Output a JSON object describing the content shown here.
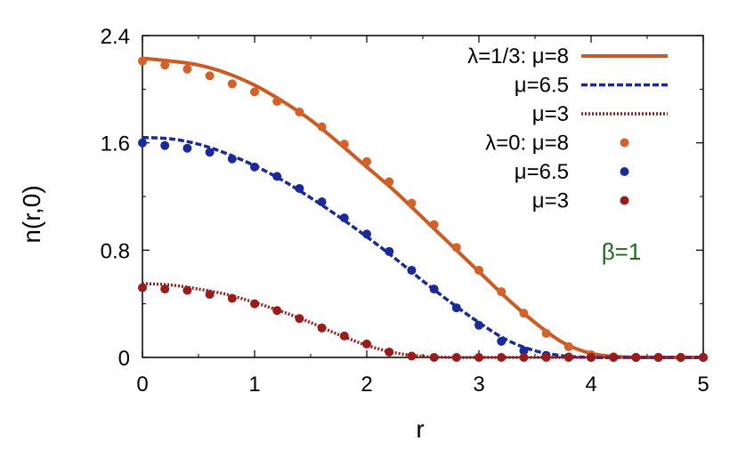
{
  "chart_data": {
    "type": "line",
    "title": "",
    "xlabel": "r",
    "ylabel": "n(r,0)",
    "xlim": [
      0,
      5
    ],
    "ylim": [
      0,
      2.4
    ],
    "xticks": [
      "0",
      "1",
      "2",
      "3",
      "4",
      "5"
    ],
    "yticks": [
      "0",
      "0.8",
      "1.6",
      "2.4"
    ],
    "grid": false,
    "legend_position": "top-right",
    "annotation": {
      "text": "β=1",
      "color": "#1a6e1a"
    },
    "series": [
      {
        "name": "λ=1/3: μ=8",
        "style": "solid",
        "color": "#cc5a22",
        "x": [
          0,
          0.25,
          0.5,
          0.75,
          1.0,
          1.25,
          1.5,
          1.75,
          2.0,
          2.25,
          2.5,
          2.75,
          3.0,
          3.25,
          3.5,
          3.75,
          4.0,
          4.25,
          4.5,
          4.75,
          5.0
        ],
        "values": [
          2.23,
          2.21,
          2.18,
          2.12,
          2.03,
          1.91,
          1.77,
          1.6,
          1.42,
          1.24,
          1.04,
          0.84,
          0.64,
          0.44,
          0.26,
          0.11,
          0.03,
          0.005,
          0.0,
          0.0,
          0.0
        ]
      },
      {
        "name": "μ=6.5",
        "style": "dashed",
        "color": "#1a2a9c",
        "x": [
          0,
          0.25,
          0.5,
          0.75,
          1.0,
          1.25,
          1.5,
          1.75,
          2.0,
          2.25,
          2.5,
          2.75,
          3.0,
          3.25,
          3.5,
          3.75,
          4.0,
          4.25,
          4.5,
          4.75,
          5.0
        ],
        "values": [
          1.64,
          1.63,
          1.59,
          1.52,
          1.43,
          1.32,
          1.19,
          1.05,
          0.9,
          0.74,
          0.57,
          0.41,
          0.26,
          0.13,
          0.05,
          0.012,
          0.0,
          0.0,
          0.0,
          0.0,
          0.0
        ]
      },
      {
        "name": "μ=3",
        "style": "dotted",
        "color": "#9b1b1b",
        "x": [
          0,
          0.25,
          0.5,
          0.75,
          1.0,
          1.25,
          1.5,
          1.75,
          2.0,
          2.25,
          2.5,
          2.75,
          3.0,
          3.25,
          3.5,
          3.75,
          4.0,
          4.25,
          4.5,
          4.75,
          5.0
        ],
        "values": [
          0.55,
          0.54,
          0.51,
          0.47,
          0.41,
          0.34,
          0.26,
          0.17,
          0.09,
          0.035,
          0.008,
          0.0,
          0.0,
          0.0,
          0.0,
          0.0,
          0.0,
          0.0,
          0.0,
          0.0,
          0.0
        ]
      },
      {
        "name": "λ=0: μ=8",
        "style": "points",
        "color": "#d4602a",
        "x": [
          0,
          0.2,
          0.4,
          0.6,
          0.8,
          1.0,
          1.2,
          1.4,
          1.6,
          1.8,
          2.0,
          2.2,
          2.4,
          2.6,
          2.8,
          3.0,
          3.2,
          3.4,
          3.6,
          3.8,
          4.0,
          4.2,
          4.4,
          4.6,
          4.8,
          5.0
        ],
        "values": [
          2.21,
          2.18,
          2.15,
          2.1,
          2.04,
          1.98,
          1.91,
          1.83,
          1.72,
          1.59,
          1.46,
          1.31,
          1.15,
          0.99,
          0.82,
          0.65,
          0.49,
          0.33,
          0.18,
          0.08,
          0.02,
          0.005,
          0.0,
          0.0,
          0.0,
          0.0
        ]
      },
      {
        "name": "μ=6.5",
        "style": "points",
        "color": "#1a2a9c",
        "x": [
          0,
          0.2,
          0.4,
          0.6,
          0.8,
          1.0,
          1.2,
          1.4,
          1.6,
          1.8,
          2.0,
          2.2,
          2.4,
          2.6,
          2.8,
          3.0,
          3.2,
          3.4,
          3.6,
          3.8,
          4.0,
          4.2,
          4.4,
          4.6,
          4.8,
          5.0
        ],
        "values": [
          1.6,
          1.58,
          1.56,
          1.53,
          1.48,
          1.42,
          1.35,
          1.26,
          1.16,
          1.04,
          0.92,
          0.79,
          0.65,
          0.51,
          0.37,
          0.24,
          0.12,
          0.05,
          0.015,
          0.003,
          0.0,
          0.0,
          0.0,
          0.0,
          0.0,
          0.0
        ]
      },
      {
        "name": "μ=3",
        "style": "points",
        "color": "#9b1b1b",
        "x": [
          0,
          0.2,
          0.4,
          0.6,
          0.8,
          1.0,
          1.2,
          1.4,
          1.6,
          1.8,
          2.0,
          2.2,
          2.4,
          2.6,
          2.8,
          3.0,
          3.2,
          3.4,
          3.6,
          3.8,
          4.0,
          4.2,
          4.4,
          4.6,
          4.8,
          5.0
        ],
        "values": [
          0.52,
          0.51,
          0.5,
          0.47,
          0.44,
          0.4,
          0.35,
          0.29,
          0.22,
          0.16,
          0.1,
          0.04,
          0.01,
          0.0,
          0.0,
          0.0,
          0.0,
          0.0,
          0.0,
          0.0,
          0.0,
          0.0,
          0.0,
          0.0,
          0.0,
          0.0
        ]
      }
    ]
  }
}
